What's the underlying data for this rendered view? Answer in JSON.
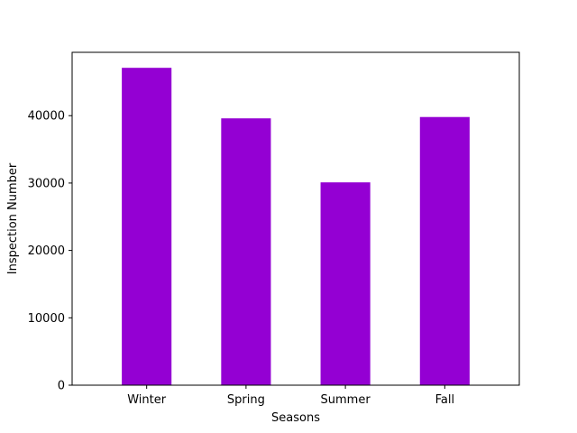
{
  "chart_data": {
    "type": "bar",
    "title": "",
    "xlabel": "Seasons",
    "ylabel": "Inspection Number",
    "categories": [
      "Winter",
      "Spring",
      "Summer",
      "Fall"
    ],
    "values": [
      47100,
      39600,
      30100,
      39800
    ],
    "ylim": [
      0,
      49400
    ],
    "yticks": [
      0,
      10000,
      20000,
      30000,
      40000
    ],
    "ytick_labels": [
      "0",
      "10000",
      "20000",
      "30000",
      "40000"
    ],
    "bar_color": "#9400d3",
    "grid": false,
    "legend": "none"
  }
}
